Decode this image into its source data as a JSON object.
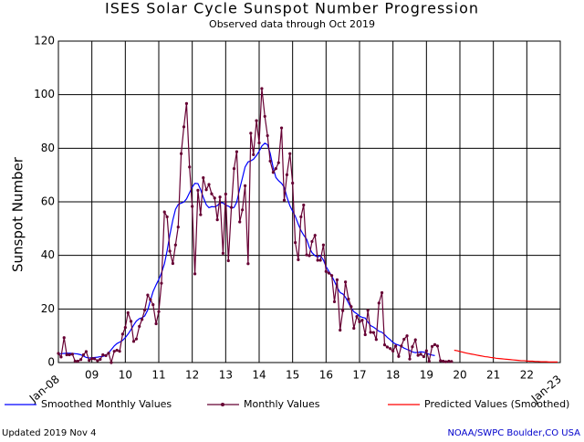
{
  "chart_data": {
    "type": "line",
    "title": "ISES Solar Cycle Sunspot Number Progression",
    "subtitle": "Observed data through Oct 2019",
    "y_label": "Sunspot Number",
    "updated": "Updated 2019 Nov  4",
    "source": "NOAA/SWPC Boulder,CO USA",
    "xlim": [
      2008,
      2023
    ],
    "xticks": [
      {
        "value": 2008,
        "label": "Jan-08"
      },
      {
        "value": 2009,
        "label": "09"
      },
      {
        "value": 2010,
        "label": "10"
      },
      {
        "value": 2011,
        "label": "11"
      },
      {
        "value": 2012,
        "label": "12"
      },
      {
        "value": 2013,
        "label": "13"
      },
      {
        "value": 2014,
        "label": "14"
      },
      {
        "value": 2015,
        "label": "15"
      },
      {
        "value": 2016,
        "label": "16"
      },
      {
        "value": 2017,
        "label": "17"
      },
      {
        "value": 2018,
        "label": "18"
      },
      {
        "value": 2019,
        "label": "19"
      },
      {
        "value": 2020,
        "label": "20"
      },
      {
        "value": 2021,
        "label": "21"
      },
      {
        "value": 2022,
        "label": "22"
      },
      {
        "value": 2023,
        "label": "Jan-23"
      }
    ],
    "ylim": [
      0,
      120
    ],
    "yticks": [
      0,
      20,
      40,
      60,
      80,
      100,
      120
    ],
    "grid": true,
    "series": [
      {
        "name": "Smoothed Monthly Values",
        "color": "#0000ff",
        "markers": false,
        "x": [
          2008,
          2008.08,
          2008.17,
          2008.25,
          2008.33,
          2008.42,
          2008.5,
          2008.58,
          2008.67,
          2008.75,
          2008.83,
          2008.92,
          2009,
          2009.08,
          2009.17,
          2009.25,
          2009.33,
          2009.42,
          2009.5,
          2009.58,
          2009.67,
          2009.75,
          2009.83,
          2009.92,
          2010,
          2010.08,
          2010.17,
          2010.25,
          2010.33,
          2010.42,
          2010.5,
          2010.58,
          2010.67,
          2010.75,
          2010.83,
          2010.92,
          2011,
          2011.08,
          2011.17,
          2011.25,
          2011.33,
          2011.42,
          2011.5,
          2011.58,
          2011.67,
          2011.75,
          2011.83,
          2011.92,
          2012,
          2012.08,
          2012.17,
          2012.25,
          2012.33,
          2012.42,
          2012.5,
          2012.58,
          2012.67,
          2012.75,
          2012.83,
          2012.92,
          2013,
          2013.08,
          2013.17,
          2013.25,
          2013.33,
          2013.42,
          2013.5,
          2013.58,
          2013.67,
          2013.75,
          2013.83,
          2013.92,
          2014,
          2014.08,
          2014.17,
          2014.25,
          2014.33,
          2014.42,
          2014.5,
          2014.58,
          2014.67,
          2014.75,
          2014.83,
          2014.92,
          2015,
          2015.08,
          2015.17,
          2015.25,
          2015.33,
          2015.42,
          2015.5,
          2015.58,
          2015.67,
          2015.75,
          2015.83,
          2015.92,
          2016,
          2016.08,
          2016.17,
          2016.25,
          2016.33,
          2016.42,
          2016.5,
          2016.58,
          2016.67,
          2016.75,
          2016.83,
          2016.92,
          2017,
          2017.08,
          2017.17,
          2017.25,
          2017.33,
          2017.42,
          2017.5,
          2017.58,
          2017.67,
          2017.75,
          2017.83,
          2017.92,
          2018,
          2018.08,
          2018.17,
          2018.25,
          2018.33,
          2018.42,
          2018.5,
          2018.58,
          2018.67,
          2018.75,
          2018.83,
          2018.92,
          2019,
          2019.08,
          2019.17,
          2019.25
        ],
        "values": [
          3.3,
          3.3,
          3.4,
          3.5,
          3.5,
          3.4,
          3.3,
          3.2,
          2.9,
          2.4,
          1.9,
          1.7,
          1.8,
          1.9,
          2.0,
          2.2,
          2.3,
          2.7,
          3.6,
          4.8,
          6.2,
          7.1,
          7.6,
          8.3,
          9.3,
          10.6,
          12.3,
          14.0,
          15.5,
          16.4,
          16.7,
          17.4,
          19.6,
          23.2,
          26.5,
          29.0,
          31.0,
          33.4,
          36.9,
          41.8,
          47.6,
          53.2,
          57.2,
          59.0,
          59.5,
          59.9,
          61.1,
          63.4,
          65.5,
          66.9,
          66.8,
          64.6,
          61.7,
          58.9,
          57.8,
          58.2,
          58.1,
          58.6,
          59.7,
          59.6,
          58.7,
          58.4,
          57.6,
          57.9,
          59.9,
          64.9,
          68.9,
          73.0,
          74.9,
          75.3,
          75.9,
          77.3,
          78.9,
          80.8,
          81.9,
          81.3,
          78.1,
          72.7,
          69.1,
          67.9,
          66.9,
          65.4,
          61.8,
          58.5,
          56.5,
          54.6,
          51.6,
          49.3,
          47.6,
          46.0,
          43.0,
          41.0,
          39.9,
          39.4,
          39.9,
          38.3,
          35.8,
          34.1,
          32.3,
          30.3,
          28.1,
          26.1,
          25.6,
          24.4,
          22.3,
          20.3,
          19.0,
          18.2,
          17.3,
          16.9,
          16.6,
          15.1,
          13.8,
          13.2,
          12.5,
          11.7,
          11.3,
          10.4,
          9.4,
          8.5,
          7.5,
          6.9,
          6.5,
          6.0,
          5.4,
          4.9,
          4.5,
          4.0,
          3.7,
          3.8,
          4.0,
          3.9,
          3.5,
          3.1,
          2.8,
          2.6
        ]
      },
      {
        "name": "Monthly Values",
        "color": "#660033",
        "markers": true,
        "x": [
          2008,
          2008.08,
          2008.17,
          2008.25,
          2008.33,
          2008.42,
          2008.5,
          2008.58,
          2008.67,
          2008.75,
          2008.83,
          2008.92,
          2009,
          2009.08,
          2009.17,
          2009.25,
          2009.33,
          2009.42,
          2009.5,
          2009.58,
          2009.67,
          2009.75,
          2009.83,
          2009.92,
          2010,
          2010.08,
          2010.17,
          2010.25,
          2010.33,
          2010.42,
          2010.5,
          2010.58,
          2010.67,
          2010.75,
          2010.83,
          2010.92,
          2011,
          2011.08,
          2011.17,
          2011.25,
          2011.33,
          2011.42,
          2011.5,
          2011.58,
          2011.67,
          2011.75,
          2011.83,
          2011.92,
          2012,
          2012.08,
          2012.17,
          2012.25,
          2012.33,
          2012.42,
          2012.5,
          2012.58,
          2012.67,
          2012.75,
          2012.83,
          2012.92,
          2013,
          2013.08,
          2013.17,
          2013.25,
          2013.33,
          2013.42,
          2013.5,
          2013.58,
          2013.67,
          2013.75,
          2013.83,
          2013.92,
          2014,
          2014.08,
          2014.17,
          2014.25,
          2014.33,
          2014.42,
          2014.5,
          2014.58,
          2014.67,
          2014.75,
          2014.83,
          2014.92,
          2015,
          2015.08,
          2015.17,
          2015.25,
          2015.33,
          2015.42,
          2015.5,
          2015.58,
          2015.67,
          2015.75,
          2015.83,
          2015.92,
          2016,
          2016.08,
          2016.17,
          2016.25,
          2016.33,
          2016.42,
          2016.5,
          2016.58,
          2016.67,
          2016.75,
          2016.83,
          2016.92,
          2017,
          2017.08,
          2017.17,
          2017.25,
          2017.33,
          2017.42,
          2017.5,
          2017.58,
          2017.67,
          2017.75,
          2017.83,
          2017.92,
          2018,
          2018.08,
          2018.17,
          2018.25,
          2018.33,
          2018.42,
          2018.5,
          2018.58,
          2018.67,
          2018.75,
          2018.83,
          2018.92,
          2019,
          2019.08,
          2019.17,
          2019.25,
          2019.33,
          2019.42,
          2019.5,
          2019.58,
          2019.67,
          2019.75
        ],
        "values": [
          3.4,
          2.1,
          9.3,
          2.9,
          2.9,
          3.1,
          0.5,
          0.5,
          1.1,
          2.9,
          4.1,
          0.8,
          1.5,
          1.4,
          0.7,
          1.2,
          2.9,
          2.6,
          3.5,
          0,
          4.2,
          4.6,
          4.2,
          10.6,
          13.1,
          18.6,
          15.4,
          7.9,
          8.8,
          13.5,
          16.1,
          19.6,
          25.2,
          23.5,
          21.6,
          14.5,
          19,
          29.6,
          56.2,
          54.4,
          41.6,
          37,
          43.9,
          50.6,
          78,
          88,
          96.7,
          73,
          58.3,
          33.1,
          64.3,
          55.2,
          69,
          64.5,
          66.5,
          63,
          61.4,
          53.3,
          61.8,
          40.8,
          62.9,
          38,
          57.9,
          72.4,
          78.7,
          52.5,
          57,
          66,
          36.9,
          85.6,
          77.6,
          90.3,
          82,
          102.3,
          91.9,
          84.7,
          75.2,
          71,
          72.4,
          74.6,
          87.6,
          60.6,
          70.1,
          78,
          67,
          44.8,
          38.4,
          54.4,
          58.8,
          40.2,
          39.9,
          45.2,
          47.5,
          38.2,
          38.2,
          43.9,
          34,
          33.4,
          32.5,
          22.7,
          30.9,
          12.1,
          19.4,
          30.1,
          23.7,
          20.9,
          12.8,
          17.2,
          15.2,
          15.8,
          10.4,
          19.5,
          11.3,
          11.2,
          8.6,
          22.2,
          26.1,
          6.6,
          5.8,
          5.2,
          4.3,
          6.2,
          2.3,
          6.2,
          8.7,
          10,
          1.3,
          5.9,
          8.5,
          2.7,
          3.1,
          2.2,
          4.4,
          0.5,
          6,
          6.7,
          6.2,
          0.7,
          0.5,
          0.3,
          0.5,
          0.4
        ]
      },
      {
        "name": "Predicted Values (Smoothed)",
        "color": "#ff0000",
        "markers": false,
        "x": [
          2019.83,
          2019.92,
          2020,
          2020.08,
          2020.17,
          2020.25,
          2020.33,
          2020.42,
          2020.5,
          2020.58,
          2020.67,
          2020.75,
          2020.83,
          2020.92,
          2021,
          2021.08,
          2021.17,
          2021.25,
          2021.33,
          2021.42,
          2021.5,
          2021.58,
          2021.67,
          2021.75,
          2021.83,
          2021.92,
          2022,
          2022.08,
          2022.17,
          2022.25,
          2022.33,
          2022.42,
          2022.5,
          2022.58,
          2022.67,
          2022.75,
          2022.83,
          2022.92
        ],
        "values": [
          4.6,
          4.4,
          4.1,
          3.9,
          3.6,
          3.4,
          3.2,
          3.0,
          2.8,
          2.6,
          2.4,
          2.2,
          2.1,
          1.9,
          1.8,
          1.6,
          1.5,
          1.4,
          1.3,
          1.2,
          1.1,
          1.0,
          0.9,
          0.8,
          0.7,
          0.7,
          0.6,
          0.5,
          0.5,
          0.4,
          0.4,
          0.3,
          0.3,
          0.3,
          0.2,
          0.2,
          0.2,
          0.2
        ]
      }
    ]
  }
}
